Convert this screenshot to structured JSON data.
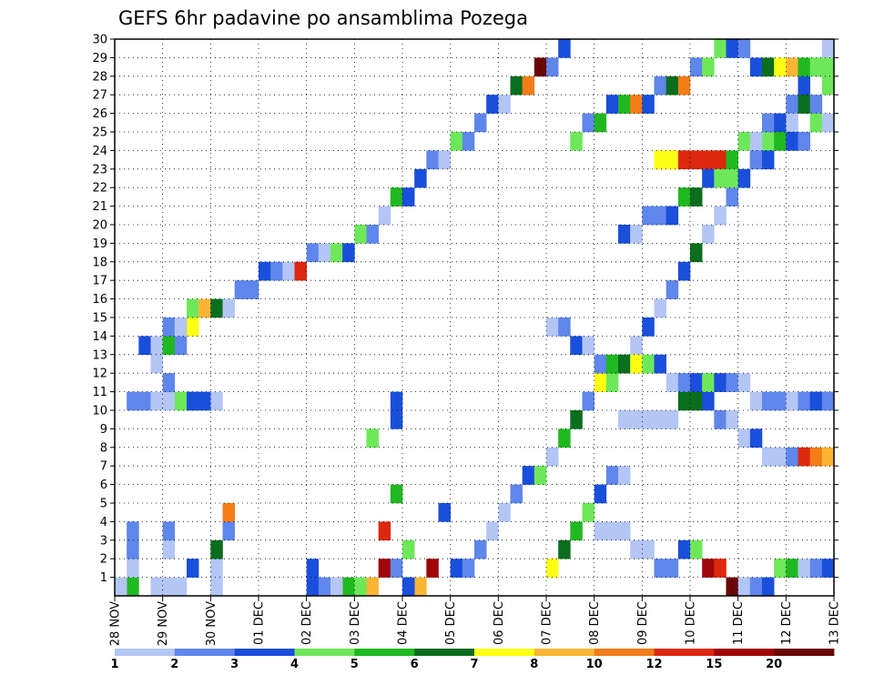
{
  "chart_data": {
    "type": "heatmap",
    "title": "GEFS 6hr padavine po ansamblima Pozega",
    "xlabel": "",
    "ylabel": "",
    "x_tick_labels": [
      "28 NOV",
      "29 NOV",
      "30 NOV",
      "01 DEC",
      "02 DEC",
      "03 DEC",
      "04 DEC",
      "05 DEC",
      "06 DEC",
      "07 DEC",
      "08 DEC",
      "09 DEC",
      "10 DEC",
      "11 DEC",
      "12 DEC",
      "13 DEC"
    ],
    "y_tick_labels": [
      "1",
      "2",
      "3",
      "4",
      "5",
      "6",
      "7",
      "8",
      "9",
      "10",
      "11",
      "12",
      "13",
      "14",
      "15",
      "16",
      "17",
      "18",
      "19",
      "20",
      "21",
      "22",
      "23",
      "24",
      "25",
      "26",
      "27",
      "28",
      "29",
      "30"
    ],
    "x_range_days": [
      0,
      15
    ],
    "x_step_hours": 6,
    "y_range": [
      0,
      30
    ],
    "grid": true,
    "colorbar": {
      "labels": [
        "1",
        "2",
        "3",
        "4",
        "5",
        "6",
        "7",
        "8",
        "10",
        "12",
        "15",
        "20"
      ],
      "colors": [
        "#b3c6f5",
        "#5f86eb",
        "#1a4fdc",
        "#6ee85a",
        "#20b820",
        "#0a6e1e",
        "#ffff14",
        "#fbb534",
        "#f47d18",
        "#dc280f",
        "#a0060a",
        "#6a0606"
      ]
    },
    "cells": [
      [
        1,
        0,
        4
      ],
      [
        1,
        1,
        0
      ],
      [
        1,
        2,
        1
      ],
      [
        1,
        3,
        1
      ],
      [
        3,
        0,
        0
      ],
      [
        4,
        0,
        0
      ],
      [
        4,
        2,
        0
      ],
      [
        4,
        3,
        1
      ],
      [
        5,
        0,
        0
      ],
      [
        6,
        1,
        2
      ],
      [
        16,
        0,
        2
      ],
      [
        16,
        1,
        2
      ],
      [
        19,
        0,
        4
      ],
      [
        20,
        0,
        3
      ],
      [
        25,
        0,
        7
      ],
      [
        26,
        1,
        10
      ],
      [
        27,
        4,
        2
      ],
      [
        8,
        0,
        0
      ],
      [
        8,
        1,
        0
      ],
      [
        8,
        2,
        5
      ],
      [
        9,
        3,
        1
      ],
      [
        9,
        4,
        8
      ],
      [
        21,
        0,
        7
      ],
      [
        22,
        1,
        10
      ],
      [
        23,
        1,
        1
      ],
      [
        24,
        2,
        3
      ],
      [
        22,
        3,
        9
      ],
      [
        23,
        5,
        4
      ],
      [
        21,
        8,
        3
      ],
      [
        23,
        9,
        2
      ],
      [
        23,
        10,
        2
      ],
      [
        1,
        10,
        1
      ],
      [
        2,
        10,
        1
      ],
      [
        3,
        10,
        0
      ],
      [
        4,
        10,
        0
      ],
      [
        5,
        10,
        3
      ],
      [
        6,
        10,
        2
      ],
      [
        7,
        10,
        2
      ],
      [
        8,
        10,
        0
      ],
      [
        4,
        11,
        1
      ],
      [
        3,
        12,
        0
      ],
      [
        2,
        13,
        2
      ],
      [
        3,
        13,
        0
      ],
      [
        4,
        13,
        4
      ],
      [
        5,
        13,
        1
      ],
      [
        6,
        14,
        6
      ],
      [
        4,
        14,
        1
      ],
      [
        5,
        14,
        0
      ],
      [
        6,
        15,
        3
      ],
      [
        7,
        15,
        7
      ],
      [
        8,
        15,
        5
      ],
      [
        9,
        15,
        0
      ],
      [
        10,
        16,
        1
      ],
      [
        11,
        16,
        1
      ],
      [
        12,
        17,
        2
      ],
      [
        13,
        17,
        1
      ],
      [
        14,
        17,
        0
      ],
      [
        15,
        17,
        9
      ],
      [
        16,
        18,
        1
      ],
      [
        17,
        18,
        0
      ],
      [
        18,
        18,
        3
      ],
      [
        19,
        18,
        2
      ],
      [
        20,
        19,
        3
      ],
      [
        21,
        19,
        1
      ],
      [
        22,
        20,
        0
      ],
      [
        23,
        21,
        4
      ],
      [
        24,
        21,
        2
      ],
      [
        25,
        22,
        2
      ],
      [
        26,
        23,
        1
      ],
      [
        27,
        23,
        0
      ],
      [
        28,
        24,
        3
      ],
      [
        29,
        24,
        1
      ],
      [
        30,
        25,
        1
      ],
      [
        31,
        26,
        2
      ],
      [
        32,
        26,
        0
      ],
      [
        33,
        27,
        5
      ],
      [
        34,
        27,
        8
      ],
      [
        35,
        28,
        11
      ],
      [
        36,
        28,
        1
      ],
      [
        37,
        29,
        2
      ],
      [
        0,
        0,
        0
      ],
      [
        17,
        0,
        1
      ],
      [
        18,
        0,
        0
      ],
      [
        24,
        0,
        2
      ],
      [
        28,
        1,
        2
      ],
      [
        29,
        1,
        1
      ],
      [
        30,
        2,
        1
      ],
      [
        31,
        3,
        0
      ],
      [
        32,
        4,
        0
      ],
      [
        33,
        5,
        1
      ],
      [
        34,
        6,
        2
      ],
      [
        35,
        6,
        3
      ],
      [
        36,
        7,
        0
      ],
      [
        37,
        8,
        4
      ],
      [
        38,
        9,
        5
      ],
      [
        39,
        10,
        1
      ],
      [
        40,
        11,
        6
      ],
      [
        41,
        11,
        3
      ],
      [
        42,
        12,
        1
      ],
      [
        43,
        13,
        0
      ],
      [
        44,
        14,
        2
      ],
      [
        45,
        15,
        0
      ],
      [
        46,
        16,
        1
      ],
      [
        47,
        17,
        2
      ],
      [
        48,
        18,
        5
      ],
      [
        49,
        19,
        0
      ],
      [
        50,
        20,
        0
      ],
      [
        51,
        21,
        1
      ],
      [
        52,
        22,
        0
      ],
      [
        53,
        23,
        2
      ],
      [
        54,
        24,
        3
      ],
      [
        55,
        25,
        0
      ],
      [
        56,
        26,
        1
      ],
      [
        57,
        27,
        2
      ],
      [
        58,
        28,
        1
      ],
      [
        59,
        29,
        0
      ],
      [
        45,
        23,
        6
      ],
      [
        46,
        23,
        6
      ],
      [
        47,
        23,
        9
      ],
      [
        48,
        23,
        9
      ],
      [
        49,
        23,
        9
      ],
      [
        50,
        23,
        9
      ],
      [
        51,
        23,
        4
      ],
      [
        52,
        24,
        3
      ],
      [
        53,
        24,
        0
      ],
      [
        54,
        25,
        1
      ],
      [
        55,
        25,
        2
      ],
      [
        56,
        25,
        0
      ],
      [
        57,
        26,
        5
      ],
      [
        58,
        26,
        1
      ],
      [
        59,
        27,
        3
      ],
      [
        38,
        24,
        3
      ],
      [
        39,
        25,
        1
      ],
      [
        40,
        25,
        4
      ],
      [
        41,
        26,
        2
      ],
      [
        42,
        26,
        4
      ],
      [
        43,
        26,
        8
      ],
      [
        44,
        26,
        2
      ],
      [
        45,
        27,
        1
      ],
      [
        46,
        27,
        5
      ],
      [
        47,
        27,
        8
      ],
      [
        48,
        28,
        1
      ],
      [
        49,
        28,
        3
      ],
      [
        50,
        29,
        3
      ],
      [
        51,
        29,
        2
      ],
      [
        52,
        29,
        1
      ],
      [
        53,
        28,
        2
      ],
      [
        54,
        28,
        5
      ],
      [
        55,
        28,
        6
      ],
      [
        56,
        28,
        7
      ],
      [
        57,
        28,
        4
      ],
      [
        58,
        28,
        3
      ],
      [
        59,
        28,
        3
      ],
      [
        42,
        19,
        2
      ],
      [
        43,
        19,
        0
      ],
      [
        44,
        20,
        1
      ],
      [
        45,
        20,
        1
      ],
      [
        46,
        20,
        2
      ],
      [
        47,
        21,
        4
      ],
      [
        48,
        21,
        5
      ],
      [
        49,
        22,
        2
      ],
      [
        50,
        22,
        3
      ],
      [
        51,
        22,
        3
      ],
      [
        52,
        22,
        2
      ],
      [
        53,
        23,
        1
      ],
      [
        54,
        23,
        2
      ],
      [
        55,
        24,
        4
      ],
      [
        56,
        24,
        2
      ],
      [
        57,
        24,
        1
      ],
      [
        58,
        25,
        3
      ],
      [
        59,
        25,
        0
      ],
      [
        42,
        9,
        0
      ],
      [
        43,
        9,
        0
      ],
      [
        44,
        9,
        0
      ],
      [
        45,
        9,
        0
      ],
      [
        46,
        9,
        0
      ],
      [
        47,
        10,
        5
      ],
      [
        48,
        10,
        5
      ],
      [
        49,
        10,
        2
      ],
      [
        50,
        9,
        1
      ],
      [
        51,
        9,
        0
      ],
      [
        52,
        8,
        0
      ],
      [
        53,
        8,
        2
      ],
      [
        54,
        7,
        0
      ],
      [
        55,
        7,
        0
      ],
      [
        56,
        7,
        1
      ],
      [
        57,
        7,
        9
      ],
      [
        58,
        7,
        8
      ],
      [
        59,
        7,
        7
      ],
      [
        40,
        3,
        0
      ],
      [
        41,
        3,
        0
      ],
      [
        42,
        3,
        0
      ],
      [
        43,
        2,
        0
      ],
      [
        44,
        2,
        0
      ],
      [
        45,
        1,
        1
      ],
      [
        46,
        1,
        1
      ],
      [
        47,
        2,
        2
      ],
      [
        48,
        2,
        3
      ],
      [
        49,
        1,
        10
      ],
      [
        50,
        1,
        9
      ],
      [
        51,
        0,
        11
      ],
      [
        52,
        0,
        0
      ],
      [
        53,
        0,
        1
      ],
      [
        54,
        0,
        2
      ],
      [
        55,
        1,
        3
      ],
      [
        56,
        1,
        4
      ],
      [
        57,
        1,
        0
      ],
      [
        58,
        1,
        1
      ],
      [
        59,
        1,
        2
      ],
      [
        36,
        1,
        6
      ],
      [
        37,
        2,
        5
      ],
      [
        38,
        3,
        4
      ],
      [
        39,
        4,
        3
      ],
      [
        40,
        5,
        2
      ],
      [
        41,
        6,
        1
      ],
      [
        42,
        6,
        0
      ],
      [
        36,
        14,
        0
      ],
      [
        37,
        14,
        1
      ],
      [
        38,
        13,
        2
      ],
      [
        39,
        13,
        0
      ],
      [
        40,
        12,
        1
      ],
      [
        41,
        12,
        4
      ],
      [
        42,
        12,
        5
      ],
      [
        43,
        12,
        6
      ],
      [
        44,
        12,
        3
      ],
      [
        45,
        12,
        2
      ],
      [
        46,
        11,
        0
      ],
      [
        47,
        11,
        1
      ],
      [
        48,
        11,
        2
      ],
      [
        49,
        11,
        3
      ],
      [
        50,
        11,
        2
      ],
      [
        51,
        11,
        1
      ],
      [
        52,
        11,
        0
      ],
      [
        53,
        10,
        0
      ],
      [
        54,
        10,
        1
      ],
      [
        55,
        10,
        1
      ],
      [
        56,
        10,
        0
      ],
      [
        57,
        10,
        1
      ],
      [
        58,
        10,
        2
      ],
      [
        59,
        10,
        1
      ]
    ]
  }
}
